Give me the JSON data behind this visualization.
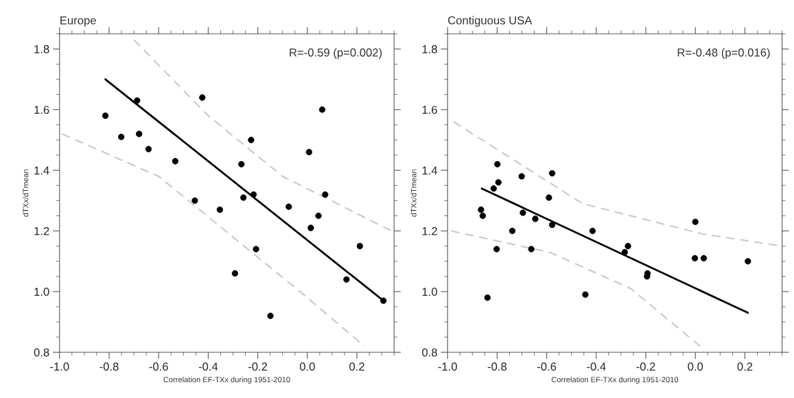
{
  "chart_data": [
    {
      "type": "scatter",
      "title": "Europe",
      "xlabel": "Correlation EF-TXx during 1951-2010",
      "ylabel": "dTXx/dTmean",
      "xlim": [
        -1.0,
        0.35
      ],
      "ylim": [
        0.8,
        1.85
      ],
      "xticks": [
        {
          "value": -1.0,
          "label": "-1.0"
        },
        {
          "value": -0.8,
          "label": "-0.8"
        },
        {
          "value": -0.6,
          "label": "-0.6"
        },
        {
          "value": -0.4,
          "label": "-0.4"
        },
        {
          "value": -0.2,
          "label": "-0.2"
        },
        {
          "value": 0.0,
          "label": "0.0"
        },
        {
          "value": 0.2,
          "label": "0.2"
        }
      ],
      "yticks": [
        {
          "value": 0.8,
          "label": "0.8"
        },
        {
          "value": 1.0,
          "label": "1.0"
        },
        {
          "value": 1.2,
          "label": "1.2"
        },
        {
          "value": 1.4,
          "label": "1.4"
        },
        {
          "value": 1.6,
          "label": "1.6"
        },
        {
          "value": 1.8,
          "label": "1.8"
        }
      ],
      "grid": false,
      "legend": false,
      "annotations": [
        "R=-0.59 (p=0.002)"
      ],
      "series": [
        {
          "color": "#000000",
          "marker": "circle",
          "x": [
            -0.815,
            -0.687,
            -0.424,
            0.06,
            -0.751,
            -0.679,
            -0.641,
            -0.533,
            -0.227,
            -0.266,
            0.007,
            0.072,
            -0.454,
            -0.353,
            -0.258,
            -0.217,
            -0.075,
            0.045,
            0.014,
            -0.207,
            0.212,
            -0.292,
            0.158,
            -0.149,
            0.307
          ],
          "values": [
            1.58,
            1.63,
            1.64,
            1.6,
            1.51,
            1.52,
            1.47,
            1.43,
            1.5,
            1.42,
            1.46,
            1.32,
            1.3,
            1.27,
            1.31,
            1.32,
            1.28,
            1.25,
            1.21,
            1.14,
            1.15,
            1.06,
            1.04,
            0.92,
            0.97
          ]
        },
        {
          "type": "line",
          "color": "#000000",
          "line_style": "solid",
          "x": [
            -0.815,
            0.307
          ],
          "values": [
            1.7,
            0.97
          ]
        },
        {
          "type": "line",
          "color": "#c8c8c8",
          "line_style": "dashed",
          "x": [
            -0.7,
            -0.4,
            -0.1,
            0.34
          ],
          "values": [
            1.83,
            1.58,
            1.38,
            1.2
          ]
        },
        {
          "type": "line",
          "color": "#c8c8c8",
          "line_style": "dashed",
          "x": [
            -0.99,
            -0.6,
            -0.3,
            0.0,
            0.23
          ],
          "values": [
            1.52,
            1.38,
            1.18,
            0.98,
            0.82
          ]
        }
      ]
    },
    {
      "type": "scatter",
      "title": "Contiguous USA",
      "xlabel": "Correlation EF-TXx during 1951-2010",
      "ylabel": "dTXx/dTmean",
      "xlim": [
        -1.0,
        0.35
      ],
      "ylim": [
        0.8,
        1.85
      ],
      "xticks": [
        {
          "value": -1.0,
          "label": "-1.0"
        },
        {
          "value": -0.8,
          "label": "-0.8"
        },
        {
          "value": -0.6,
          "label": "-0.6"
        },
        {
          "value": -0.4,
          "label": "-0.4"
        },
        {
          "value": -0.2,
          "label": "-0.2"
        },
        {
          "value": 0.0,
          "label": "0.0"
        },
        {
          "value": 0.2,
          "label": "0.2"
        }
      ],
      "yticks": [
        {
          "value": 0.8,
          "label": "0.8"
        },
        {
          "value": 1.0,
          "label": "1.0"
        },
        {
          "value": 1.2,
          "label": "1.2"
        },
        {
          "value": 1.4,
          "label": "1.4"
        },
        {
          "value": 1.6,
          "label": "1.6"
        },
        {
          "value": 1.8,
          "label": "1.8"
        }
      ],
      "grid": false,
      "legend": false,
      "annotations": [
        "R=-0.48 (p=0.016)"
      ],
      "series": [
        {
          "color": "#000000",
          "marker": "circle",
          "x": [
            -0.799,
            -0.701,
            -0.578,
            -0.795,
            -0.814,
            -0.591,
            -0.865,
            -0.858,
            -0.739,
            -0.802,
            -0.839,
            -0.696,
            -0.646,
            -0.578,
            -0.662,
            -0.415,
            -0.272,
            -0.285,
            -0.193,
            -0.195,
            -0.444,
            0.0,
            -0.002,
            0.034,
            0.212
          ],
          "values": [
            1.42,
            1.38,
            1.39,
            1.36,
            1.34,
            1.31,
            1.27,
            1.25,
            1.2,
            1.14,
            0.98,
            1.26,
            1.24,
            1.22,
            1.14,
            1.2,
            1.15,
            1.13,
            1.06,
            1.05,
            0.99,
            1.23,
            1.11,
            1.11,
            1.1
          ]
        },
        {
          "type": "line",
          "color": "#000000",
          "line_style": "solid",
          "x": [
            -0.862,
            0.212
          ],
          "values": [
            1.34,
            0.93
          ]
        },
        {
          "type": "line",
          "color": "#c8c8c8",
          "line_style": "dashed",
          "x": [
            -0.976,
            -0.455,
            0.029,
            0.35
          ],
          "values": [
            1.56,
            1.29,
            1.19,
            1.15
          ]
        },
        {
          "type": "line",
          "color": "#c8c8c8",
          "line_style": "dashed",
          "x": [
            -0.986,
            -0.589,
            -0.261,
            0.019
          ],
          "values": [
            1.2,
            1.13,
            1.01,
            0.82
          ]
        }
      ]
    }
  ]
}
